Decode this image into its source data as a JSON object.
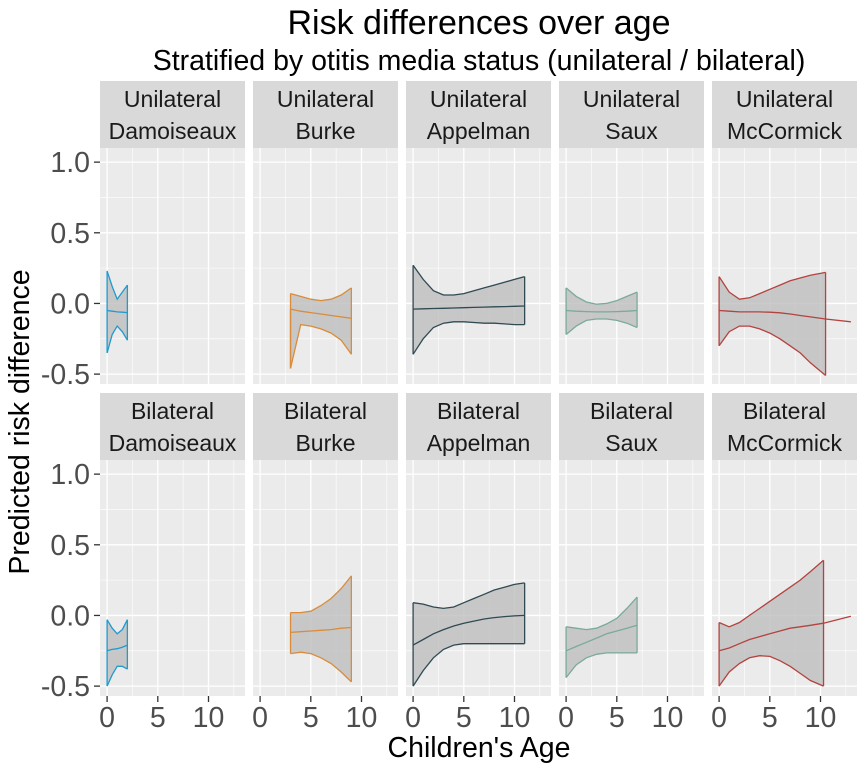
{
  "chart_data": {
    "type": "area",
    "title": "Risk differences over age",
    "subtitle": "Stratified by otitis media status (unilateral / bilateral)",
    "xlabel": "Children's Age",
    "ylabel": "Predicted risk difference",
    "xlim": [
      -0.7,
      13.6
    ],
    "ylim": [
      -0.57,
      1.1
    ],
    "x_ticks": [
      0,
      5,
      10
    ],
    "y_ticks": [
      -0.5,
      0.0,
      0.5,
      1.0
    ],
    "x_tick_labels": [
      "0",
      "5",
      "10"
    ],
    "y_tick_labels": [
      "-0.5",
      "0.0",
      "0.5",
      "1.0"
    ],
    "grid": true,
    "legend": "none",
    "rows": [
      "Unilateral",
      "Bilateral"
    ],
    "columns": [
      {
        "name": "Damoiseaux",
        "color": "#1f9bcf"
      },
      {
        "name": "Burke",
        "color": "#d98c3c"
      },
      {
        "name": "Appelman",
        "color": "#2f4a52"
      },
      {
        "name": "Saux",
        "color": "#7aab98"
      },
      {
        "name": "McCormick",
        "color": "#b3433f"
      }
    ],
    "panels": [
      {
        "row": "Unilateral",
        "column": "Damoiseaux",
        "x": [
          0,
          0.5,
          1,
          1.5,
          2
        ],
        "y": [
          -0.05,
          -0.055,
          -0.06,
          -0.062,
          -0.065
        ],
        "upper": [
          0.23,
          0.12,
          0.03,
          0.08,
          0.13
        ],
        "lower": [
          -0.35,
          -0.22,
          -0.16,
          -0.2,
          -0.26
        ]
      },
      {
        "row": "Unilateral",
        "column": "Burke",
        "x": [
          3,
          4,
          5,
          6,
          7,
          8,
          9
        ],
        "y": [
          -0.04,
          -0.055,
          -0.065,
          -0.075,
          -0.085,
          -0.095,
          -0.105
        ],
        "upper": [
          0.07,
          0.05,
          0.03,
          0.02,
          0.03,
          0.06,
          0.11
        ],
        "lower": [
          -0.46,
          -0.15,
          -0.16,
          -0.18,
          -0.21,
          -0.26,
          -0.36
        ],
        "tail_x": [
          3,
          3
        ],
        "tail_y": [
          -0.04,
          -0.46
        ]
      },
      {
        "row": "Unilateral",
        "column": "Appelman",
        "x": [
          0,
          1,
          2,
          3,
          4,
          5,
          6,
          7,
          8,
          9,
          10,
          11
        ],
        "y": [
          -0.04,
          -0.038,
          -0.036,
          -0.034,
          -0.032,
          -0.03,
          -0.028,
          -0.026,
          -0.024,
          -0.022,
          -0.02,
          -0.018
        ],
        "upper": [
          0.27,
          0.17,
          0.09,
          0.06,
          0.06,
          0.07,
          0.09,
          0.11,
          0.13,
          0.15,
          0.17,
          0.19
        ],
        "lower": [
          -0.36,
          -0.25,
          -0.17,
          -0.14,
          -0.13,
          -0.13,
          -0.135,
          -0.14,
          -0.14,
          -0.145,
          -0.15,
          -0.15
        ]
      },
      {
        "row": "Unilateral",
        "column": "Saux",
        "x": [
          0,
          1,
          2,
          3,
          4,
          5,
          6,
          7
        ],
        "y": [
          -0.05,
          -0.055,
          -0.058,
          -0.06,
          -0.06,
          -0.058,
          -0.055,
          -0.05
        ],
        "upper": [
          0.11,
          0.05,
          0.01,
          -0.005,
          0.0,
          0.02,
          0.05,
          0.08
        ],
        "lower": [
          -0.22,
          -0.16,
          -0.12,
          -0.11,
          -0.11,
          -0.12,
          -0.14,
          -0.17
        ]
      },
      {
        "row": "Unilateral",
        "column": "McCormick",
        "x": [
          0,
          1,
          2,
          3,
          4,
          5,
          6,
          7,
          8,
          9,
          10.5
        ],
        "y": [
          -0.05,
          -0.055,
          -0.06,
          -0.06,
          -0.06,
          -0.062,
          -0.066,
          -0.075,
          -0.085,
          -0.095,
          -0.11
        ],
        "upper": [
          0.19,
          0.08,
          0.03,
          0.04,
          0.07,
          0.1,
          0.13,
          0.16,
          0.18,
          0.2,
          0.22
        ],
        "lower": [
          -0.3,
          -0.2,
          -0.16,
          -0.16,
          -0.18,
          -0.21,
          -0.25,
          -0.3,
          -0.35,
          -0.42,
          -0.51
        ],
        "tail_x": [
          10.5,
          13
        ],
        "tail_y": [
          -0.11,
          -0.13
        ]
      },
      {
        "row": "Bilateral",
        "column": "Damoiseaux",
        "x": [
          0,
          0.5,
          1,
          1.5,
          2
        ],
        "y": [
          -0.25,
          -0.24,
          -0.235,
          -0.225,
          -0.21
        ],
        "upper": [
          -0.03,
          -0.09,
          -0.13,
          -0.1,
          -0.03
        ],
        "lower": [
          -0.5,
          -0.42,
          -0.36,
          -0.36,
          -0.38
        ]
      },
      {
        "row": "Bilateral",
        "column": "Burke",
        "x": [
          3,
          4,
          5,
          6,
          7,
          8,
          9
        ],
        "y": [
          -0.12,
          -0.115,
          -0.11,
          -0.105,
          -0.1,
          -0.09,
          -0.085
        ],
        "upper": [
          0.02,
          0.02,
          0.03,
          0.07,
          0.12,
          0.19,
          0.28
        ],
        "lower": [
          -0.27,
          -0.26,
          -0.27,
          -0.3,
          -0.34,
          -0.4,
          -0.47
        ]
      },
      {
        "row": "Bilateral",
        "column": "Appelman",
        "x": [
          0,
          1,
          2,
          3,
          4,
          5,
          6,
          7,
          8,
          9,
          10,
          11
        ],
        "y": [
          -0.21,
          -0.17,
          -0.13,
          -0.1,
          -0.075,
          -0.055,
          -0.04,
          -0.025,
          -0.015,
          -0.008,
          -0.003,
          0.0
        ],
        "upper": [
          0.09,
          0.08,
          0.06,
          0.05,
          0.06,
          0.09,
          0.12,
          0.15,
          0.18,
          0.2,
          0.22,
          0.23
        ],
        "lower": [
          -0.5,
          -0.39,
          -0.3,
          -0.24,
          -0.21,
          -0.2,
          -0.2,
          -0.2,
          -0.2,
          -0.2,
          -0.2,
          -0.2
        ]
      },
      {
        "row": "Bilateral",
        "column": "Saux",
        "x": [
          0,
          1,
          2,
          3,
          4,
          5,
          6,
          7
        ],
        "y": [
          -0.25,
          -0.22,
          -0.19,
          -0.16,
          -0.13,
          -0.11,
          -0.09,
          -0.07
        ],
        "upper": [
          -0.08,
          -0.09,
          -0.1,
          -0.09,
          -0.06,
          -0.02,
          0.05,
          0.13
        ],
        "lower": [
          -0.44,
          -0.35,
          -0.3,
          -0.275,
          -0.265,
          -0.265,
          -0.265,
          -0.265
        ]
      },
      {
        "row": "Bilateral",
        "column": "McCormick",
        "x": [
          0,
          1,
          2,
          3,
          4,
          5,
          6,
          7,
          8,
          9,
          10.3
        ],
        "y": [
          -0.25,
          -0.23,
          -0.2,
          -0.17,
          -0.15,
          -0.13,
          -0.11,
          -0.09,
          -0.08,
          -0.07,
          -0.055
        ],
        "upper": [
          -0.05,
          -0.08,
          -0.05,
          0.0,
          0.05,
          0.1,
          0.15,
          0.2,
          0.25,
          0.31,
          0.39
        ],
        "lower": [
          -0.5,
          -0.4,
          -0.34,
          -0.3,
          -0.285,
          -0.29,
          -0.32,
          -0.36,
          -0.41,
          -0.46,
          -0.5
        ],
        "tail_x": [
          10.3,
          13
        ],
        "tail_y": [
          -0.055,
          -0.005
        ]
      }
    ]
  }
}
